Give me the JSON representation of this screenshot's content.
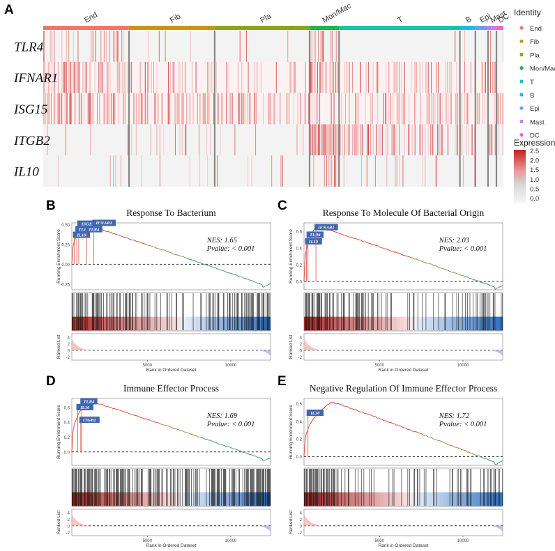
{
  "panel_labels": {
    "a": "A",
    "b": "B",
    "c": "C",
    "d": "D",
    "e": "E"
  },
  "heatmap": {
    "clusters": [
      {
        "name": "End",
        "color": "#f0766d",
        "weight": 122
      },
      {
        "name": "Fib",
        "color": "#c89418",
        "weight": 122
      },
      {
        "name": "Pla",
        "color": "#8aa51d",
        "weight": 135
      },
      {
        "name": "Mon/Mac",
        "color": "#23b24b",
        "weight": 42
      },
      {
        "name": "T",
        "color": "#1bc3a3",
        "weight": 172
      },
      {
        "name": "B",
        "color": "#20b8e5",
        "weight": 22
      },
      {
        "name": "Epi",
        "color": "#6b9cf5",
        "weight": 18
      },
      {
        "name": "Mast",
        "color": "#c67bf0",
        "weight": 12
      },
      {
        "name": "DC",
        "color": "#f065cf",
        "weight": 10
      }
    ],
    "genes": [
      "TLR4",
      "IFNAR1",
      "ISG15",
      "ITGB2",
      "IL10"
    ],
    "density": [
      [
        0.25,
        0.03,
        0.04,
        0.38,
        0.02,
        0.06,
        0.05,
        0.06,
        0.05
      ],
      [
        0.55,
        0.25,
        0.18,
        0.72,
        0.22,
        0.22,
        0.32,
        0.25,
        0.32
      ],
      [
        0.45,
        0.35,
        0.28,
        0.42,
        0.35,
        0.28,
        0.34,
        0.32,
        0.32
      ],
      [
        0.03,
        0.12,
        0.04,
        0.92,
        0.42,
        0.52,
        0.14,
        0.55,
        0.65
      ],
      [
        0.05,
        0.05,
        0.02,
        0.32,
        0.06,
        0.06,
        0.04,
        0.05,
        0.04
      ]
    ],
    "legend_title": "Identity",
    "expression_title": "Expression",
    "expression_ticks": [
      "2.5",
      "2.0",
      "1.5",
      "1.0",
      "0.5",
      "0.0"
    ]
  },
  "gsea_common": {
    "y_label": "Running Enrichment Score",
    "ranked_label": "Ranked List",
    "x_label": "Rank in Ordered Dataset",
    "x_ticks": [
      "5000",
      "10000"
    ],
    "rank_ticks": [
      "4",
      "2",
      "0",
      "-2"
    ]
  },
  "gsea": [
    {
      "title": "Response To Bacterium",
      "nes": "NES: 1.65",
      "pvalue": "Pvalue: < 0.001",
      "yticks": [
        "0.50",
        "0.25",
        "0.00",
        "-0.25"
      ],
      "ymin": -0.32,
      "ymax": 0.52,
      "peak": 0.5,
      "peak_x": 0.06,
      "cross_x": 0.55,
      "end": -0.24,
      "genes": [
        {
          "label": "ISG15",
          "x": 0.035,
          "es": 0.48
        },
        {
          "label": "TLR4",
          "x": 0.025,
          "es": 0.41
        },
        {
          "label": "IL10",
          "x": 0.013,
          "es": 0.34
        },
        {
          "label": "TLR4",
          "x": 0.075,
          "es": 0.41
        },
        {
          "label": "IFNAR1",
          "x": 0.11,
          "es": 0.49
        }
      ],
      "bar_density": [
        0.9,
        0.85,
        0.7,
        0.55,
        0.5,
        0.45,
        0.35,
        0.3,
        0.3,
        0.3,
        0.35,
        0.45,
        0.55,
        0.7,
        0.85
      ]
    },
    {
      "title": "Response To Molecule Of Bacterial Origin",
      "nes": "NES: 2.03",
      "pvalue": "Pvalue: < 0.001",
      "yticks": [
        "0.6",
        "0.4",
        "0.2",
        "0.0"
      ],
      "ymin": -0.1,
      "ymax": 0.7,
      "peak": 0.66,
      "peak_x": 0.06,
      "cross_x": 0.77,
      "end": -0.05,
      "genes": [
        {
          "label": "TLR4",
          "x": 0.02,
          "es": 0.53
        },
        {
          "label": "IL10",
          "x": 0.012,
          "es": 0.45
        },
        {
          "label": "IFNAR1",
          "x": 0.06,
          "es": 0.62
        }
      ],
      "bar_density": [
        0.9,
        0.8,
        0.55,
        0.45,
        0.4,
        0.35,
        0.25,
        0.15,
        0.3,
        0.3,
        0.25,
        0.2,
        0.35,
        0.55,
        0.6
      ]
    },
    {
      "title": "Immune Effector Process",
      "nes": "NES: 1.69",
      "pvalue": "Pvalue: < 0.001",
      "yticks": [
        "0.6",
        "0.4",
        "0.2",
        "0.0"
      ],
      "ymin": -0.18,
      "ymax": 0.72,
      "peak": 0.69,
      "peak_x": 0.08,
      "cross_x": 0.62,
      "end": -0.08,
      "genes": [
        {
          "label": "TLR4",
          "x": 0.05,
          "es": 0.65
        },
        {
          "label": "IL10",
          "x": 0.03,
          "es": 0.57
        },
        {
          "label": "ITGB2",
          "x": 0.045,
          "es": 0.4
        }
      ],
      "bar_density": [
        0.95,
        0.9,
        0.8,
        0.7,
        0.65,
        0.55,
        0.5,
        0.45,
        0.5,
        0.5,
        0.55,
        0.65,
        0.75,
        0.9,
        0.95
      ]
    },
    {
      "title": "Negative Regulation Of Immune Effector Process",
      "nes": "NES: 1.72",
      "pvalue": "Pvalue: < 0.001",
      "yticks": [
        "0.6",
        "0.4",
        "0.2",
        "0.0"
      ],
      "ymin": -0.1,
      "ymax": 0.66,
      "peak": 0.62,
      "peak_x": 0.14,
      "cross_x": 0.83,
      "end": -0.05,
      "genes": [
        {
          "label": "IL10",
          "x": 0.02,
          "es": 0.47
        }
      ],
      "bar_density": [
        0.95,
        0.7,
        0.45,
        0.3,
        0.3,
        0.2,
        0.25,
        0.2,
        0.35,
        0.3,
        0.2,
        0.3,
        0.35,
        0.45,
        0.55
      ]
    }
  ]
}
